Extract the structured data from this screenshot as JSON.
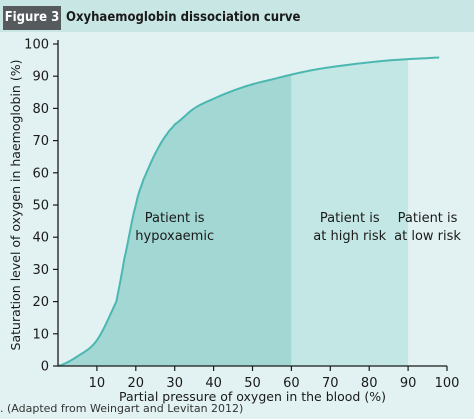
{
  "figure": {
    "label": "Figure 3",
    "title": "Oxyhaemoglobin dissociation curve",
    "source_note": ". (Adapted from Weingart and Levitan 2012)"
  },
  "colors": {
    "background": "#e2f2f2",
    "header_band": "#c8e6e4",
    "label_box": "#555a5d",
    "region_hypoxaemic": "#a3d7d3",
    "region_high_risk": "#c3e7e4",
    "curve": "#4cb7b1",
    "axis": "#1a1a1a"
  },
  "chart_data": {
    "type": "area",
    "title": "Oxyhaemoglobin dissociation curve",
    "xlabel": "Partial pressure of oxygen in the blood (%)",
    "ylabel": "Saturation level of oxygen in haemoglobin (%)",
    "xlim": [
      0,
      100
    ],
    "ylim": [
      0,
      100
    ],
    "x_ticks": [
      10,
      20,
      30,
      40,
      50,
      60,
      70,
      80,
      90,
      100
    ],
    "y_ticks": [
      0,
      10,
      20,
      30,
      40,
      50,
      60,
      70,
      80,
      90,
      100
    ],
    "grid": false,
    "curve": {
      "x": [
        0,
        5,
        10,
        15,
        17,
        20,
        22,
        25,
        28,
        30,
        35,
        40,
        45,
        50,
        55,
        60,
        65,
        70,
        75,
        80,
        85,
        90,
        95,
        98
      ],
      "y": [
        0,
        3,
        8,
        20,
        33,
        50,
        58,
        66,
        72,
        75,
        80,
        83,
        85.5,
        87.5,
        89,
        90.5,
        91.8,
        92.8,
        93.6,
        94.3,
        94.9,
        95.3,
        95.6,
        95.8
      ]
    },
    "regions": [
      {
        "label": [
          "Patient is",
          "hypoxaemic"
        ],
        "x_range": [
          0,
          60
        ],
        "shaded": true
      },
      {
        "label": [
          "Patient is",
          "at high risk"
        ],
        "x_range": [
          60,
          90
        ],
        "shaded": true
      },
      {
        "label": [
          "Patient is",
          "at low risk"
        ],
        "x_range": [
          90,
          100
        ],
        "shaded": false
      }
    ]
  }
}
